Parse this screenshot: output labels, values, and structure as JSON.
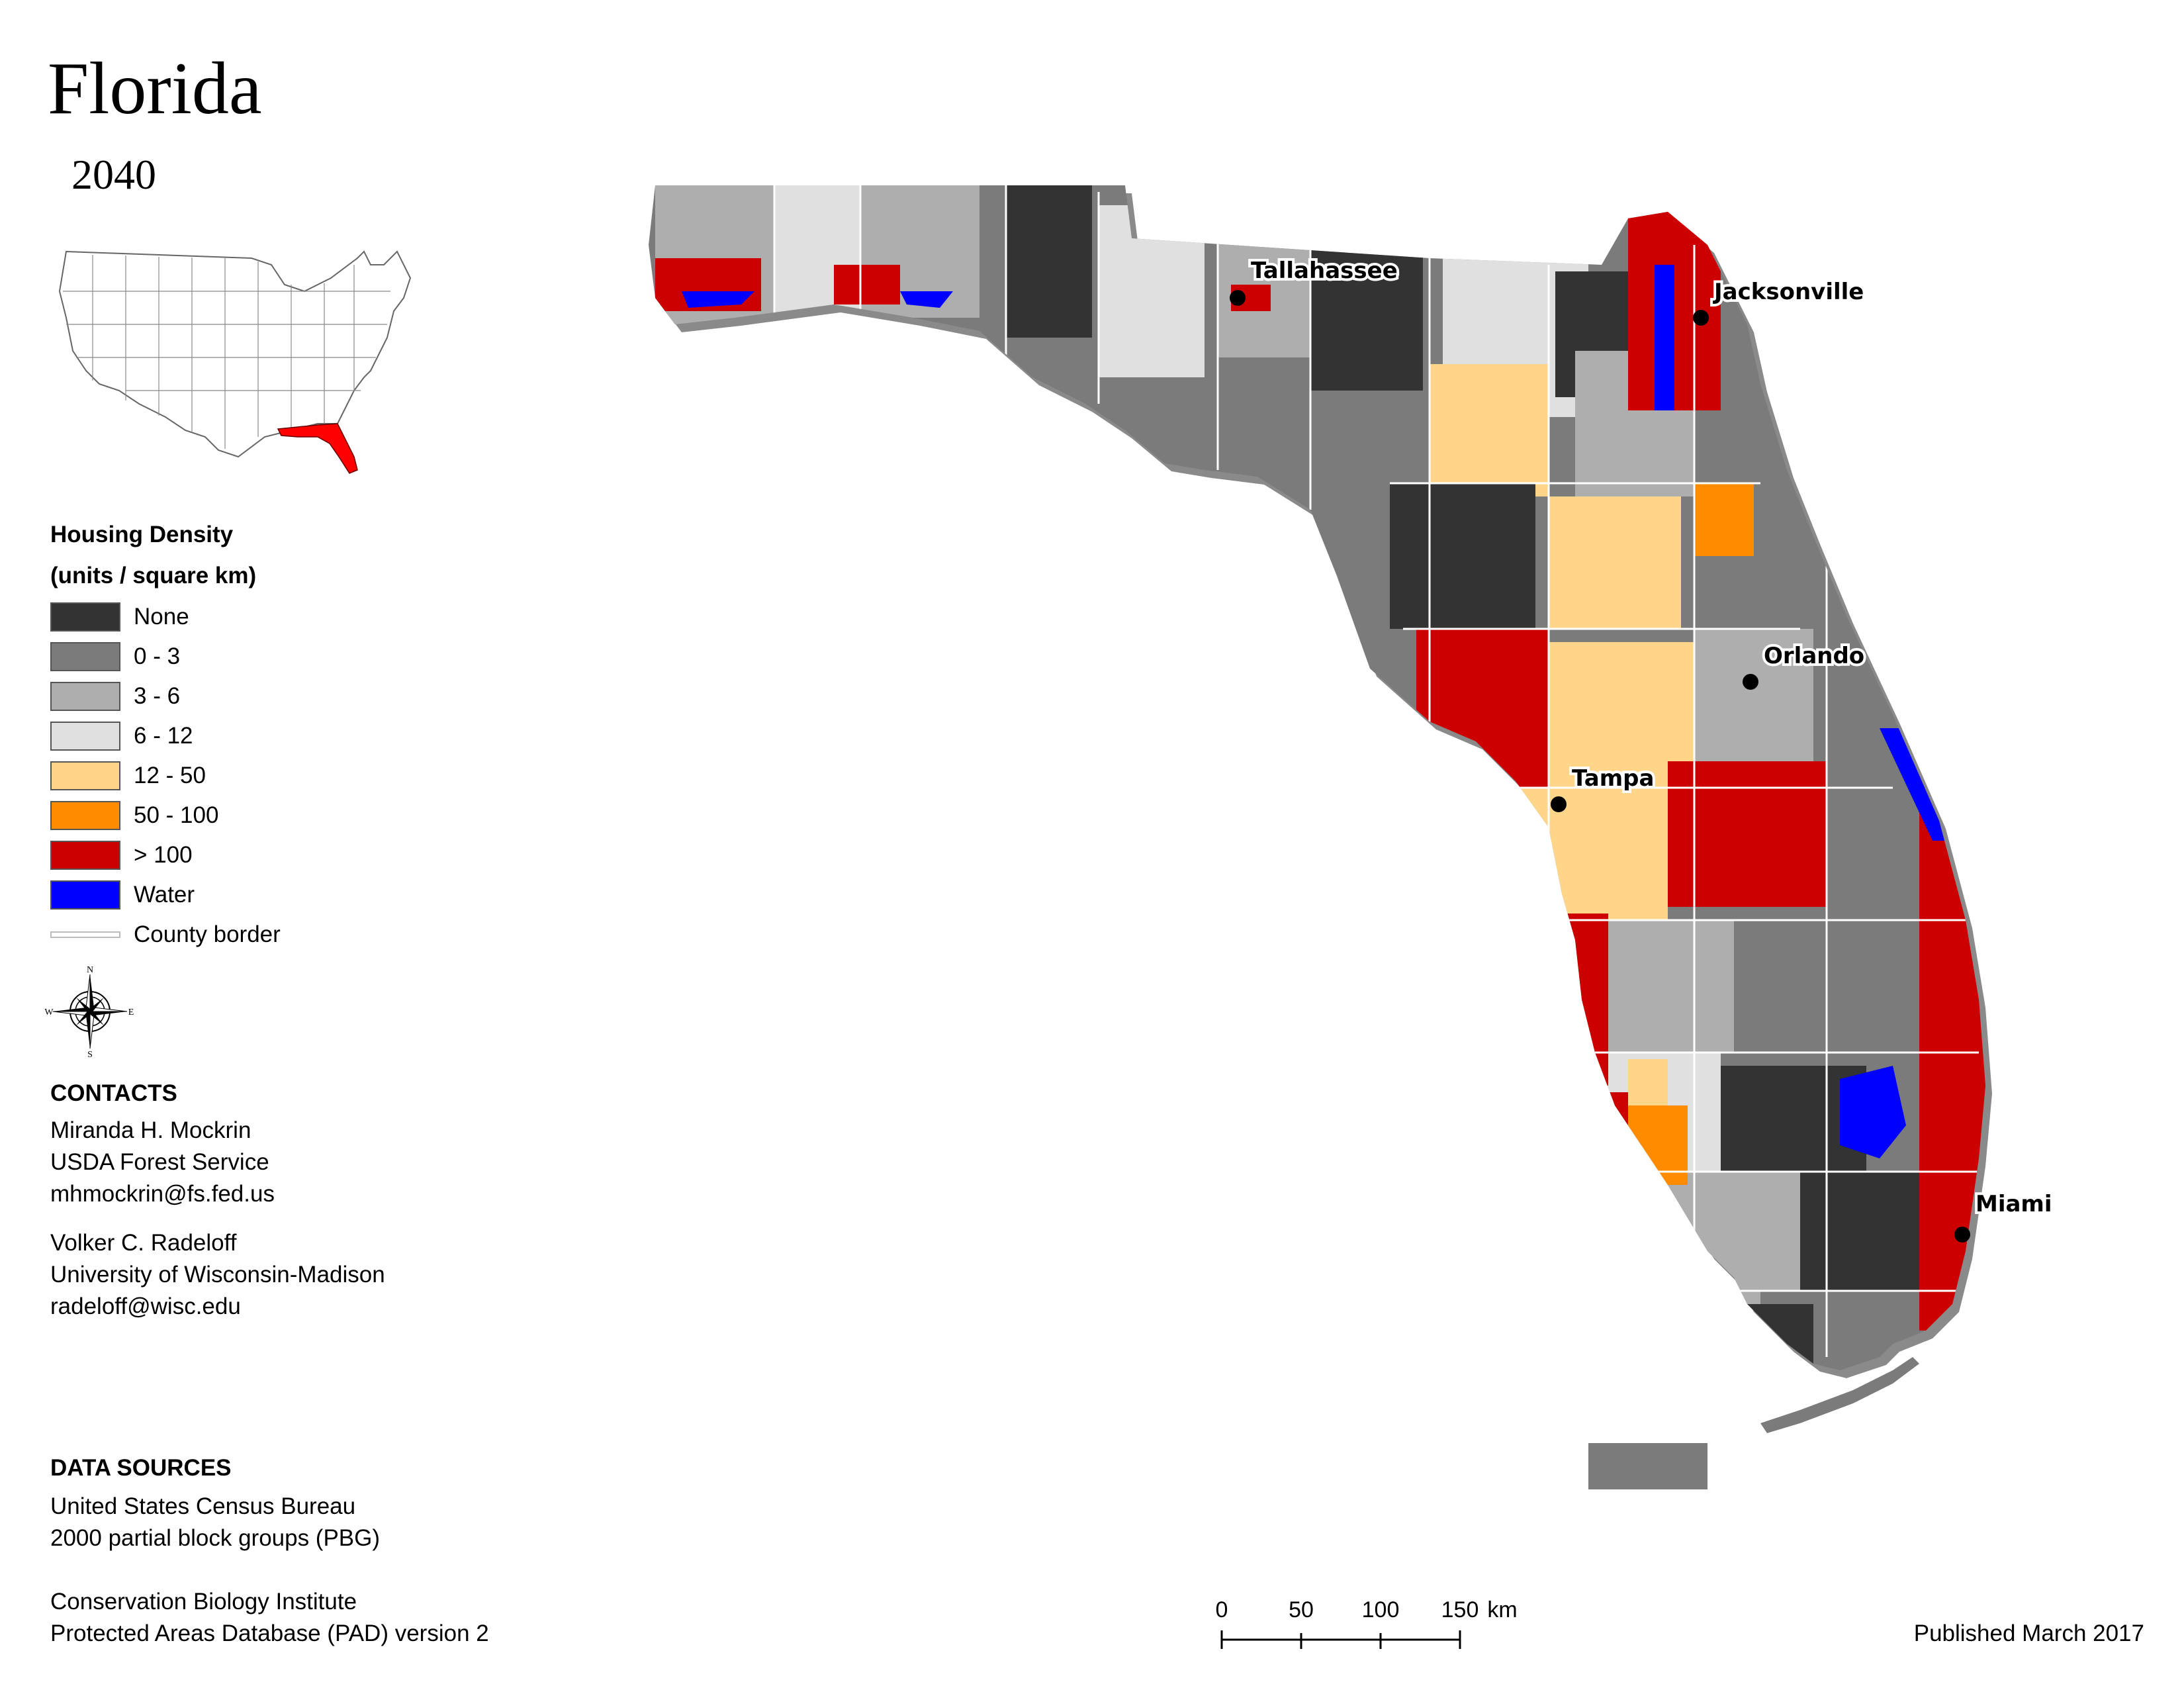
{
  "title": "Florida",
  "year": "2040",
  "legend": {
    "heading1": "Housing Density",
    "heading2": "(units / square km)",
    "classes": [
      {
        "label": "None",
        "color": "#333333"
      },
      {
        "label": "0 - 3",
        "color": "#7b7b7b"
      },
      {
        "label": "3 - 6",
        "color": "#aeaeae"
      },
      {
        "label": "6 - 12",
        "color": "#e0e0e0"
      },
      {
        "label": "12 - 50",
        "color": "#ffd58a"
      },
      {
        "label": "50 - 100",
        "color": "#ff8c00"
      },
      {
        "label": "> 100",
        "color": "#cc0000"
      },
      {
        "label": "Water",
        "color": "#0000ff"
      }
    ],
    "county_border_label": "County border"
  },
  "compass": {
    "n": "N",
    "s": "S",
    "e": "E",
    "w": "W"
  },
  "contacts": {
    "heading": "CONTACTS",
    "person1": {
      "name": "Miranda H. Mockrin",
      "org": "USDA Forest Service",
      "email": "mhmockrin@fs.fed.us"
    },
    "person2": {
      "name": "Volker C. Radeloff",
      "org": "University of Wisconsin-Madison",
      "email": "radeloff@wisc.edu"
    }
  },
  "data_sources": {
    "heading": "DATA SOURCES",
    "line1": "United States Census Bureau",
    "line2": "2000 partial block groups (PBG)",
    "line3": "Conservation Biology Institute",
    "line4": "Protected Areas Database (PAD) version 2"
  },
  "cities": {
    "tallahassee": "Tallahassee",
    "jacksonville": "Jacksonville",
    "orlando": "Orlando",
    "tampa": "Tampa",
    "miami": "Miami"
  },
  "scalebar": {
    "t0": "0",
    "t1": "50",
    "t2": "100",
    "t3": "150",
    "unit": "km"
  },
  "published": "Published March 2017"
}
